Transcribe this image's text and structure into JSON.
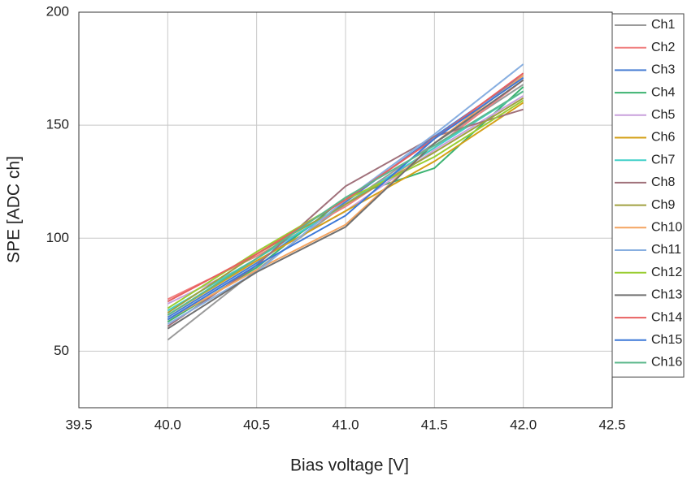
{
  "chart_data": {
    "type": "line",
    "xlabel": "Bias voltage [V]",
    "ylabel": "SPE [ADC ch]",
    "x": [
      40,
      40.5,
      41,
      41.5,
      42
    ],
    "xlim": [
      39.5,
      42.5
    ],
    "xticks": [
      39.5,
      {
        "value": 40,
        "label": "40.0"
      },
      40.5,
      {
        "value": 41,
        "label": "41.0"
      },
      41.5,
      {
        "value": 42,
        "label": "42.0"
      },
      42.5
    ],
    "ylim": [
      25,
      200
    ],
    "yticks": [
      50,
      100,
      150,
      200
    ],
    "grid": true,
    "legend": "right",
    "series": [
      {
        "name": "Ch1",
        "color": "#9a9a9a",
        "values": [
          55,
          86,
          115,
          142,
          168
        ]
      },
      {
        "name": "Ch2",
        "color": "#f08080",
        "values": [
          73,
          92,
          114,
          140,
          170
        ]
      },
      {
        "name": "Ch3",
        "color": "#4a7fd4",
        "values": [
          65,
          89,
          116,
          145,
          172
        ]
      },
      {
        "name": "Ch4",
        "color": "#3cb371",
        "values": [
          63,
          87,
          118,
          131,
          167
        ]
      },
      {
        "name": "Ch5",
        "color": "#c9a0dc",
        "values": [
          71,
          90,
          112,
          139,
          163
        ]
      },
      {
        "name": "Ch6",
        "color": "#d4a017",
        "values": [
          66,
          90,
          112,
          134,
          160
        ]
      },
      {
        "name": "Ch7",
        "color": "#40d0c8",
        "values": [
          68,
          91,
          115,
          140,
          165
        ]
      },
      {
        "name": "Ch8",
        "color": "#a0707a",
        "values": [
          61,
          88,
          123,
          145,
          157
        ]
      },
      {
        "name": "Ch9",
        "color": "#a0a040",
        "values": [
          67,
          93,
          115,
          138,
          162
        ]
      },
      {
        "name": "Ch10",
        "color": "#f4a460",
        "values": [
          64,
          86,
          106,
          142,
          172
        ]
      },
      {
        "name": "Ch11",
        "color": "#87aee0",
        "values": [
          62,
          85,
          117,
          146,
          177
        ]
      },
      {
        "name": "Ch12",
        "color": "#9acd32",
        "values": [
          69,
          94,
          117,
          136,
          161
        ]
      },
      {
        "name": "Ch13",
        "color": "#707070",
        "values": [
          60,
          85,
          105,
          142,
          170
        ]
      },
      {
        "name": "Ch14",
        "color": "#e86060",
        "values": [
          72,
          93,
          117,
          144,
          173
        ]
      },
      {
        "name": "Ch15",
        "color": "#3c78d8",
        "values": [
          64,
          88,
          110,
          144,
          171
        ]
      },
      {
        "name": "Ch16",
        "color": "#5cb88c",
        "values": [
          66,
          91,
          118,
          141,
          165
        ]
      }
    ]
  }
}
